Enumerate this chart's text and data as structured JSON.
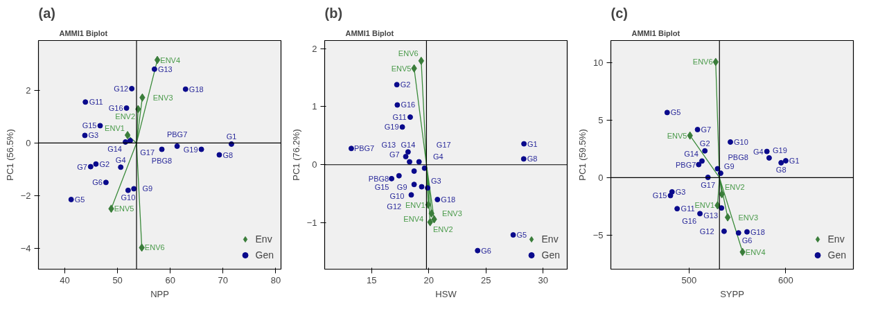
{
  "chart_data": [
    {
      "type": "scatter",
      "title": "(a)",
      "subtitle": "AMMI1 Biplot",
      "xlabel": "NPP",
      "ylabel": "PC1 (56.5%)",
      "xlim": [
        35,
        81
      ],
      "ylim": [
        -4.8,
        3.9
      ],
      "xticks": [
        40,
        50,
        60,
        70,
        80
      ],
      "yticks": [
        -4,
        -2,
        0,
        2
      ],
      "grid": false,
      "legend": "bottom right",
      "ref_lines": [
        {
          "axis": "x",
          "value": 53.6,
          "color": "#000000"
        },
        {
          "axis": "y",
          "value": 0,
          "color": "#000000"
        }
      ],
      "series": [
        {
          "type": "line",
          "color": "#3a8a3a",
          "x": [
            53.6,
            51.9,
            53.6,
            53.9,
            53.6,
            54.7,
            53.6,
            57.55,
            53.6,
            48.8,
            53.6,
            54.6
          ],
          "values": [
            0,
            0.3,
            0,
            1.29,
            0,
            1.73,
            0,
            3.16,
            0,
            -2.5,
            0,
            -3.98
          ]
        },
        {
          "name": "Env",
          "color": "#3a7d3a",
          "marker": "diamond",
          "x": [
            51.9,
            53.9,
            54.7,
            57.55,
            48.8,
            54.6
          ],
          "values": [
            0.3,
            1.29,
            1.73,
            3.16,
            -2.5,
            -3.98
          ]
        },
        {
          "name": "Gen",
          "color": "#0a0a8c",
          "marker": "circle",
          "x": [
            71.6,
            45.9,
            43.8,
            50.6,
            41.2,
            47.8,
            44.9,
            69.3,
            53.1,
            52.0,
            43.9,
            52.7,
            57.0,
            51.5,
            46.7,
            51.7,
            52.4,
            62.9,
            65.9,
            61.3,
            58.4
          ],
          "values": [
            -0.04,
            -0.8,
            0.29,
            -0.92,
            -2.15,
            -1.5,
            -0.9,
            -0.45,
            -1.74,
            -1.8,
            1.56,
            2.07,
            2.81,
            0.04,
            0.66,
            1.33,
            0.09,
            2.05,
            -0.24,
            -0.12,
            -0.24
          ]
        }
      ],
      "annotations": [
        {
          "text": "ENV1",
          "x": 51.9,
          "y": 0.3
        },
        {
          "text": "ENV2",
          "x": 53.9,
          "y": 1.29
        },
        {
          "text": "ENV3",
          "x": 54.7,
          "y": 1.73
        },
        {
          "text": "ENV4",
          "x": 57.55,
          "y": 3.16
        },
        {
          "text": "ENV5",
          "x": 48.8,
          "y": -2.5
        },
        {
          "text": "ENV6",
          "x": 54.6,
          "y": -3.98
        },
        {
          "text": "G1",
          "x": 71.6,
          "y": -0.04
        },
        {
          "text": "G2",
          "x": 45.9,
          "y": -0.8
        },
        {
          "text": "G3",
          "x": 43.8,
          "y": 0.29
        },
        {
          "text": "G4",
          "x": 50.6,
          "y": -0.92
        },
        {
          "text": "G5",
          "x": 41.2,
          "y": -2.15
        },
        {
          "text": "G6",
          "x": 47.8,
          "y": -1.5
        },
        {
          "text": "G7",
          "x": 44.9,
          "y": -0.9
        },
        {
          "text": "G8",
          "x": 69.3,
          "y": -0.45
        },
        {
          "text": "G9",
          "x": 53.1,
          "y": -1.74
        },
        {
          "text": "G10",
          "x": 52.0,
          "y": -1.8
        },
        {
          "text": "G11",
          "x": 43.9,
          "y": 1.56
        },
        {
          "text": "G12",
          "x": 52.7,
          "y": 2.07
        },
        {
          "text": "G13",
          "x": 57.0,
          "y": 2.81
        },
        {
          "text": "G14",
          "x": 51.5,
          "y": 0.04
        },
        {
          "text": "G15",
          "x": 46.7,
          "y": 0.66
        },
        {
          "text": "G16",
          "x": 51.7,
          "y": 1.33
        },
        {
          "text": "G17",
          "x": 52.4,
          "y": 0.09
        },
        {
          "text": "G18",
          "x": 62.9,
          "y": 2.05
        },
        {
          "text": "G19",
          "x": 65.9,
          "y": -0.24
        },
        {
          "text": "PBG7",
          "x": 61.3,
          "y": -0.12
        },
        {
          "text": "PBG8",
          "x": 58.4,
          "y": -0.24
        }
      ]
    },
    {
      "type": "scatter",
      "title": "(b)",
      "subtitle": "AMMI1 Biplot",
      "xlabel": "HSW",
      "ylabel": "PC1 (76.2%)",
      "xlim": [
        10.9,
        32.1
      ],
      "ylim": [
        -1.8,
        2.14
      ],
      "xticks": [
        15,
        20,
        25,
        30
      ],
      "yticks": [
        -1,
        0,
        1,
        2
      ],
      "grid": false,
      "legend": "bottom right",
      "ref_lines": [
        {
          "axis": "x",
          "value": 19.8,
          "color": "#000000"
        },
        {
          "axis": "y",
          "value": 0,
          "color": "#000000"
        }
      ],
      "series": [
        {
          "type": "line",
          "color": "#3a8a3a",
          "x": [
            19.8,
            19.95,
            19.8,
            20.12,
            19.8,
            20.24,
            19.8,
            20.47,
            19.8,
            18.72,
            19.8,
            19.34
          ],
          "values": [
            0,
            -0.69,
            0,
            -0.99,
            0,
            -0.84,
            0,
            -0.94,
            0,
            1.66,
            0,
            1.79
          ]
        },
        {
          "name": "Env",
          "color": "#3a7d3a",
          "marker": "diamond",
          "x": [
            19.95,
            20.12,
            20.24,
            20.47,
            18.72,
            19.34
          ],
          "values": [
            -0.69,
            -0.99,
            -0.84,
            -0.94,
            1.66,
            1.79
          ]
        },
        {
          "name": "Gen",
          "color": "#0a0a8c",
          "marker": "circle",
          "x": [
            28.32,
            17.21,
            19.9,
            19.63,
            27.38,
            24.27,
            18.72,
            28.3,
            19.38,
            18.72,
            18.38,
            18.47,
            17.99,
            18.19,
            17.4,
            17.25,
            19.15,
            20.76,
            17.69,
            13.23,
            16.75,
            18.32
          ],
          "values": [
            0.36,
            1.38,
            -0.4,
            -0.06,
            -1.21,
            -1.48,
            -0.11,
            0.1,
            -0.38,
            -0.34,
            0.82,
            -0.52,
            0.14,
            0.22,
            -0.19,
            1.03,
            0.05,
            -0.6,
            0.65,
            0.28,
            -0.24,
            0.05
          ]
        }
      ],
      "annotations": [
        {
          "text": "ENV1",
          "x": 19.95,
          "y": -0.69
        },
        {
          "text": "ENV2",
          "x": 20.12,
          "y": -0.99
        },
        {
          "text": "ENV3",
          "x": 20.24,
          "y": -0.84
        },
        {
          "text": "ENV4",
          "x": 20.47,
          "y": -0.94
        },
        {
          "text": "ENV5",
          "x": 18.72,
          "y": 1.66
        },
        {
          "text": "ENV6",
          "x": 19.34,
          "y": 1.79
        },
        {
          "text": "G1",
          "x": 28.32,
          "y": 0.36
        },
        {
          "text": "G2",
          "x": 17.21,
          "y": 1.38
        },
        {
          "text": "G3",
          "x": 19.9,
          "y": -0.4
        },
        {
          "text": "G4",
          "x": 19.63,
          "y": -0.06
        },
        {
          "text": "G5",
          "x": 27.38,
          "y": -1.21
        },
        {
          "text": "G6",
          "x": 24.27,
          "y": -1.48
        },
        {
          "text": "G7",
          "x": 18.72,
          "y": -0.11
        },
        {
          "text": "G8",
          "x": 28.3,
          "y": 0.1
        },
        {
          "text": "G9",
          "x": 19.38,
          "y": -0.38
        },
        {
          "text": "G10",
          "x": 18.72,
          "y": -0.34
        },
        {
          "text": "G11",
          "x": 18.38,
          "y": 0.82
        },
        {
          "text": "G12",
          "x": 18.47,
          "y": -0.52
        },
        {
          "text": "G13",
          "x": 17.99,
          "y": 0.14
        },
        {
          "text": "G14",
          "x": 18.19,
          "y": 0.22
        },
        {
          "text": "G15",
          "x": 17.4,
          "y": -0.19
        },
        {
          "text": "G16",
          "x": 17.25,
          "y": 1.03
        },
        {
          "text": "G17",
          "x": 19.15,
          "y": 0.05
        },
        {
          "text": "G18",
          "x": 20.76,
          "y": -0.6
        },
        {
          "text": "G19",
          "x": 17.69,
          "y": 0.65
        },
        {
          "text": "PBG7",
          "x": 13.23,
          "y": 0.28
        },
        {
          "text": "PBG8",
          "x": 16.75,
          "y": -0.24
        }
      ]
    },
    {
      "type": "scatter",
      "title": "(c)",
      "subtitle": "AMMI1 Biplot",
      "xlabel": "SYPP",
      "ylabel": "PC1 (59.5%)",
      "xlim": [
        419,
        670
      ],
      "ylim": [
        -7.95,
        11.9
      ],
      "xticks": [
        500,
        600
      ],
      "yticks": [
        -5,
        0,
        5,
        10
      ],
      "grid": false,
      "legend": "bottom right",
      "ref_lines": [
        {
          "axis": "x",
          "value": 531.4,
          "color": "#000000"
        },
        {
          "axis": "y",
          "value": 0,
          "color": "#000000"
        }
      ],
      "series": [
        {
          "type": "line",
          "color": "#3a8a3a",
          "x": [
            531.4,
            529.4,
            531.4,
            533.9,
            531.4,
            539.9,
            531.4,
            555.3,
            531.4,
            500.9,
            531.4,
            527.5
          ],
          "values": [
            0,
            -2.41,
            0,
            -1.44,
            0,
            -3.45,
            0,
            -6.46,
            0,
            3.65,
            0,
            10.04
          ]
        },
        {
          "name": "Env",
          "color": "#3a7d3a",
          "marker": "diamond",
          "x": [
            529.4,
            533.9,
            539.9,
            555.3,
            500.9,
            527.5
          ],
          "values": [
            -2.41,
            -1.44,
            -3.45,
            -6.46,
            3.65,
            10.04
          ]
        },
        {
          "name": "Gen",
          "color": "#0a0a8c",
          "marker": "circle",
          "x": [
            600.0,
            516.3,
            482.3,
            580.5,
            477.3,
            551.1,
            508.7,
            595.2,
            532.6,
            542.7,
            487.6,
            536.2,
            533.5,
            513.3,
            480.7,
            511.2,
            519.5,
            559.9,
            582.8,
            509.9,
            529.4
          ],
          "values": [
            1.46,
            2.32,
            -1.24,
            2.27,
            5.65,
            -4.8,
            4.17,
            1.29,
            0.38,
            3.09,
            -2.7,
            -4.66,
            -2.64,
            1.44,
            -1.56,
            -3.13,
            0.02,
            -4.71,
            1.71,
            1.13,
            0.77
          ]
        }
      ],
      "annotations": [
        {
          "text": "ENV1",
          "x": 529.4,
          "y": -2.41
        },
        {
          "text": "ENV2",
          "x": 533.9,
          "y": -1.44
        },
        {
          "text": "ENV3",
          "x": 539.9,
          "y": -3.45
        },
        {
          "text": "ENV4",
          "x": 555.3,
          "y": -6.46
        },
        {
          "text": "ENV5",
          "x": 500.9,
          "y": 3.65
        },
        {
          "text": "ENV6",
          "x": 527.5,
          "y": 10.04
        },
        {
          "text": "G1",
          "x": 600.0,
          "y": 1.46
        },
        {
          "text": "G2",
          "x": 516.3,
          "y": 2.32
        },
        {
          "text": "G3",
          "x": 482.3,
          "y": -1.24
        },
        {
          "text": "G4",
          "x": 580.5,
          "y": 2.27
        },
        {
          "text": "G5",
          "x": 477.3,
          "y": 5.65
        },
        {
          "text": "G6",
          "x": 551.1,
          "y": -4.8
        },
        {
          "text": "G7",
          "x": 508.7,
          "y": 4.17
        },
        {
          "text": "G8",
          "x": 595.2,
          "y": 1.29
        },
        {
          "text": "G9",
          "x": 532.6,
          "y": 0.38
        },
        {
          "text": "G10",
          "x": 542.7,
          "y": 3.09
        },
        {
          "text": "G11",
          "x": 487.6,
          "y": -2.7
        },
        {
          "text": "G12",
          "x": 536.2,
          "y": -4.66
        },
        {
          "text": "G13",
          "x": 533.5,
          "y": -2.64
        },
        {
          "text": "G14",
          "x": 513.3,
          "y": 1.44
        },
        {
          "text": "G15",
          "x": 480.7,
          "y": -1.56
        },
        {
          "text": "G16",
          "x": 511.2,
          "y": -3.13
        },
        {
          "text": "G17",
          "x": 519.5,
          "y": 0.02
        },
        {
          "text": "G18",
          "x": 559.9,
          "y": -4.71
        },
        {
          "text": "G19",
          "x": 582.8,
          "y": 1.71
        },
        {
          "text": "PBG7",
          "x": 509.9,
          "y": 1.13
        },
        {
          "text": "PBG8",
          "x": 529.4,
          "y": 0.77
        }
      ]
    }
  ]
}
